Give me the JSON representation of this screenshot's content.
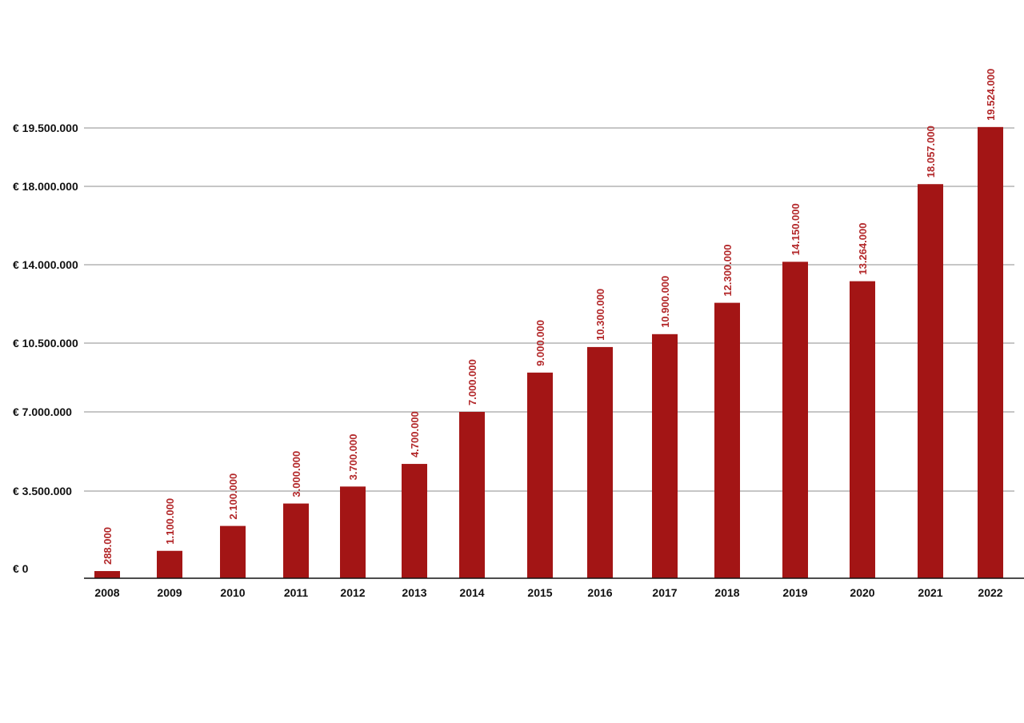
{
  "chart_data": {
    "type": "bar",
    "categories": [
      "2008",
      "2009",
      "2010",
      "2011",
      "2012",
      "2013",
      "2014",
      "2015",
      "2016",
      "2017",
      "2018",
      "2019",
      "2020",
      "2021",
      "2022"
    ],
    "values": [
      288000,
      1100000,
      2100000,
      3000000,
      3700000,
      4700000,
      7000000,
      9000000,
      10300000,
      10900000,
      12300000,
      14150000,
      13264000,
      18057000,
      19524000
    ],
    "data_labels": [
      "288.000",
      "1.100.000",
      "2.100.000",
      "3.000.000",
      "3.700.000",
      "4.700.000",
      "7.000.000",
      "9.000.000",
      "10.300.000",
      "10.900.000",
      "12.300.000",
      "14.150.000",
      "13.264.000",
      "18.057.000",
      "19.524.000"
    ],
    "yticks": [
      0,
      3500000,
      7000000,
      10500000,
      14000000,
      18000000,
      19500000
    ],
    "ytick_labels": [
      "€ 0",
      "€ 3.500.000",
      "€ 7.000.000",
      "€ 10.500.000",
      "€ 14.000.000",
      "€ 18.000.000",
      "€ 19.500.000"
    ],
    "title": "",
    "xlabel": "",
    "ylabel": "",
    "ylim": [
      0,
      19500000
    ],
    "grid": true,
    "legend": "none",
    "colors": {
      "bar": "#a31515",
      "data_label": "#b3282a",
      "gridline": "#8c8c8c",
      "baseline": "#111111",
      "tick_text": "#111111"
    }
  }
}
